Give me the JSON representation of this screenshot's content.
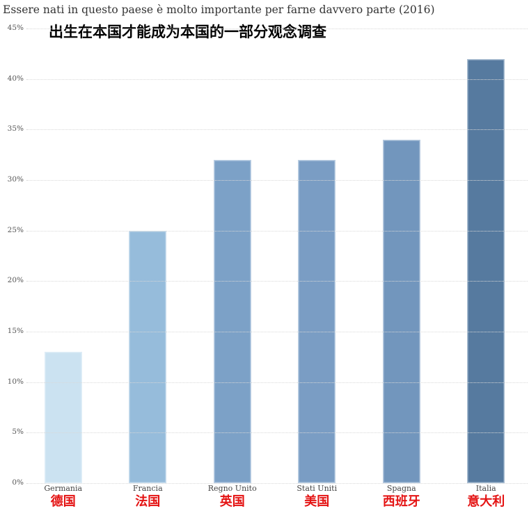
{
  "header": {
    "title": "Essere nati in questo paese è molto importante per farne davvero parte (2016)",
    "subtitle_zh": "出生在本国才能成为本国的一部分观念调查"
  },
  "chart_data": {
    "type": "bar",
    "title": "Essere nati in questo paese è molto importante per farne davvero parte (2016)",
    "subtitle": "出生在本国才能成为本国的一部分观念调查",
    "categories": [
      "Germania",
      "Francia",
      "Regno Unito",
      "Stati Uniti",
      "Spagna",
      "Italia"
    ],
    "categories_zh": [
      "德国",
      "法国",
      "英国",
      "美国",
      "西班牙",
      "意大利"
    ],
    "values": [
      13,
      25,
      32,
      32,
      34,
      42
    ],
    "unit": "%",
    "xlabel": "",
    "ylabel": "",
    "ylim": [
      0,
      45
    ],
    "yticks": [
      0,
      5,
      10,
      15,
      20,
      25,
      30,
      35,
      40,
      45
    ],
    "ytick_suffix": "%",
    "grid": "horizontal-dotted",
    "legend": "none",
    "bar_colors": [
      "#cbe2f1",
      "#96bcdb",
      "#7ca1c7",
      "#7a9dc4",
      "#7296bd",
      "#567a9f"
    ],
    "category_label_color": "#444444",
    "category_label_zh_color": "#e41212",
    "gridline_color": "#d8d8d8",
    "tick_label_color": "#555555",
    "title_color": "#333333"
  }
}
